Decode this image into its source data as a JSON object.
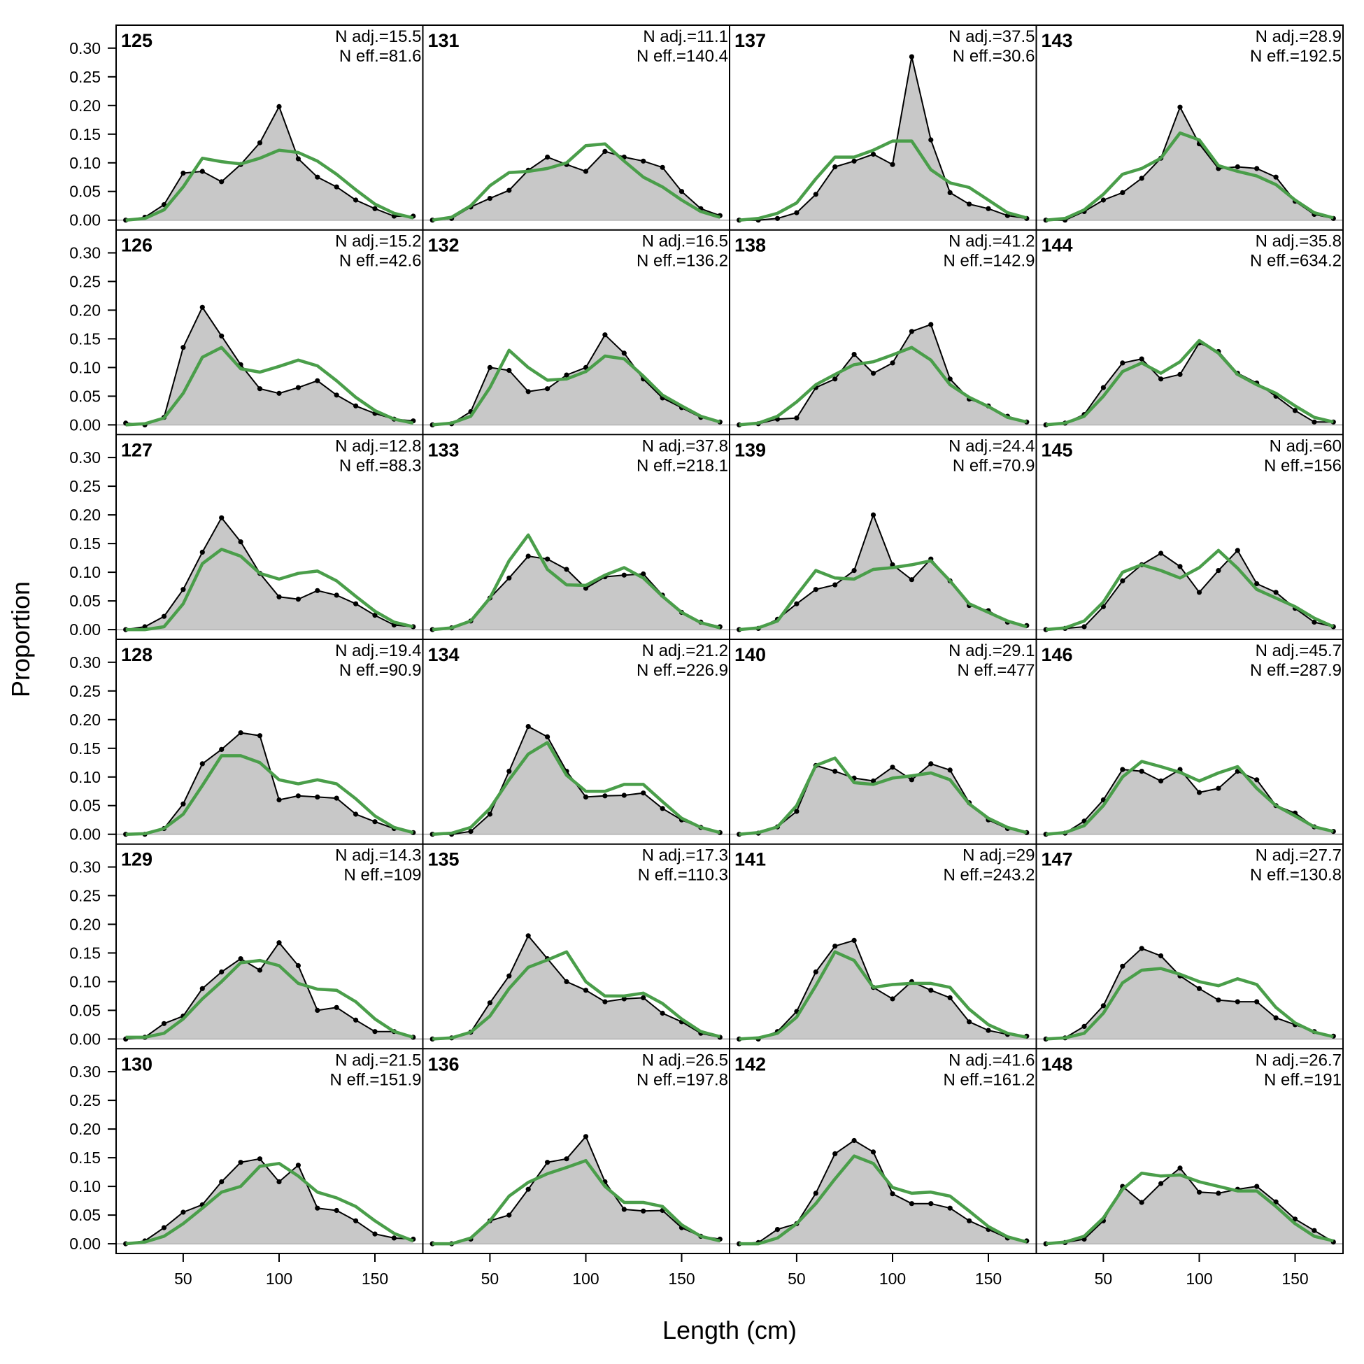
{
  "chart_data": {
    "type": "area",
    "xlabel": "Length (cm)",
    "ylabel": "Proportion",
    "xlim": [
      15,
      175
    ],
    "ylim": [
      -0.017,
      0.34
    ],
    "x_ticks": [
      50,
      100,
      150
    ],
    "y_ticks": [
      0.0,
      0.05,
      0.1,
      0.15,
      0.2,
      0.25,
      0.3
    ],
    "y_tick_labels": [
      "0.00",
      "0.05",
      "0.10",
      "0.15",
      "0.20",
      "0.25",
      "0.30"
    ],
    "x_tick_labels": [
      "50",
      "100",
      "150"
    ],
    "grid": false,
    "colors": {
      "observed_fill": "#c8c8c8",
      "observed_line": "#000000",
      "expected_line": "#4a9e4a",
      "zero_line": "#bbbbbb"
    },
    "x": [
      20,
      30,
      40,
      50,
      60,
      70,
      80,
      90,
      100,
      110,
      120,
      130,
      140,
      150,
      160,
      170
    ],
    "panel_layout": {
      "rows": 6,
      "cols": 4,
      "order": "column-major"
    },
    "panels": [
      {
        "id": "125",
        "n_adj": "N adj.=15.5",
        "n_eff": "N eff.=81.6",
        "observed": [
          0.0,
          0.005,
          0.027,
          0.082,
          0.085,
          0.067,
          0.097,
          0.135,
          0.198,
          0.107,
          0.075,
          0.058,
          0.035,
          0.02,
          0.007,
          0.007
        ],
        "expected": [
          0.0,
          0.003,
          0.018,
          0.058,
          0.108,
          0.102,
          0.098,
          0.108,
          0.122,
          0.118,
          0.103,
          0.08,
          0.053,
          0.028,
          0.012,
          0.004
        ]
      },
      {
        "id": "126",
        "n_adj": "N adj.=15.2",
        "n_eff": "N eff.=42.6",
        "observed": [
          0.003,
          0.0,
          0.013,
          0.135,
          0.205,
          0.155,
          0.105,
          0.063,
          0.055,
          0.065,
          0.077,
          0.052,
          0.033,
          0.02,
          0.01,
          0.007
        ],
        "expected": [
          0.0,
          0.002,
          0.012,
          0.055,
          0.118,
          0.135,
          0.098,
          0.092,
          0.102,
          0.113,
          0.103,
          0.077,
          0.048,
          0.025,
          0.01,
          0.003
        ]
      },
      {
        "id": "127",
        "n_adj": "N adj.=12.8",
        "n_eff": "N eff.=88.3",
        "observed": [
          0.0,
          0.005,
          0.023,
          0.07,
          0.135,
          0.195,
          0.153,
          0.098,
          0.057,
          0.053,
          0.068,
          0.06,
          0.045,
          0.025,
          0.008,
          0.005
        ],
        "expected": [
          0.0,
          0.0,
          0.005,
          0.045,
          0.115,
          0.14,
          0.128,
          0.098,
          0.088,
          0.098,
          0.102,
          0.085,
          0.058,
          0.032,
          0.013,
          0.005
        ]
      },
      {
        "id": "128",
        "n_adj": "N adj.=19.4",
        "n_eff": "N eff.=90.9",
        "observed": [
          0.0,
          0.0,
          0.01,
          0.053,
          0.123,
          0.148,
          0.177,
          0.172,
          0.06,
          0.067,
          0.065,
          0.063,
          0.035,
          0.022,
          0.01,
          0.003
        ],
        "expected": [
          0.0,
          0.001,
          0.01,
          0.035,
          0.085,
          0.137,
          0.137,
          0.125,
          0.095,
          0.088,
          0.095,
          0.088,
          0.062,
          0.032,
          0.012,
          0.003
        ]
      },
      {
        "id": "129",
        "n_adj": "N adj.=14.3",
        "n_eff": "N eff.=109",
        "observed": [
          0.0,
          0.003,
          0.027,
          0.04,
          0.088,
          0.117,
          0.14,
          0.12,
          0.168,
          0.128,
          0.05,
          0.055,
          0.033,
          0.013,
          0.013,
          0.003
        ],
        "expected": [
          0.003,
          0.003,
          0.01,
          0.035,
          0.07,
          0.1,
          0.133,
          0.137,
          0.128,
          0.097,
          0.087,
          0.085,
          0.065,
          0.035,
          0.013,
          0.003
        ]
      },
      {
        "id": "130",
        "n_adj": "N adj.=21.5",
        "n_eff": "N eff.=151.9",
        "observed": [
          0.0,
          0.005,
          0.028,
          0.055,
          0.068,
          0.108,
          0.142,
          0.148,
          0.108,
          0.137,
          0.062,
          0.058,
          0.04,
          0.017,
          0.01,
          0.008
        ],
        "expected": [
          0.0,
          0.003,
          0.013,
          0.035,
          0.062,
          0.09,
          0.1,
          0.135,
          0.14,
          0.118,
          0.09,
          0.08,
          0.065,
          0.04,
          0.018,
          0.005
        ]
      },
      {
        "id": "131",
        "n_adj": "N adj.=11.1",
        "n_eff": "N eff.=140.4",
        "observed": [
          0.0,
          0.003,
          0.023,
          0.038,
          0.052,
          0.087,
          0.11,
          0.097,
          0.085,
          0.12,
          0.11,
          0.103,
          0.092,
          0.05,
          0.02,
          0.008
        ],
        "expected": [
          0.0,
          0.005,
          0.025,
          0.06,
          0.083,
          0.085,
          0.09,
          0.1,
          0.13,
          0.133,
          0.103,
          0.075,
          0.058,
          0.035,
          0.015,
          0.005
        ]
      },
      {
        "id": "132",
        "n_adj": "N adj.=16.5",
        "n_eff": "N eff.=136.2",
        "observed": [
          0.0,
          0.002,
          0.023,
          0.1,
          0.095,
          0.058,
          0.063,
          0.087,
          0.1,
          0.157,
          0.125,
          0.08,
          0.047,
          0.03,
          0.013,
          0.005
        ],
        "expected": [
          0.0,
          0.003,
          0.015,
          0.065,
          0.13,
          0.1,
          0.078,
          0.08,
          0.093,
          0.12,
          0.115,
          0.085,
          0.052,
          0.033,
          0.015,
          0.005
        ]
      },
      {
        "id": "133",
        "n_adj": "N adj.=37.8",
        "n_eff": "N eff.=218.1",
        "observed": [
          0.0,
          0.003,
          0.015,
          0.055,
          0.09,
          0.128,
          0.123,
          0.105,
          0.072,
          0.092,
          0.095,
          0.097,
          0.06,
          0.03,
          0.013,
          0.005
        ],
        "expected": [
          0.0,
          0.003,
          0.015,
          0.055,
          0.12,
          0.165,
          0.105,
          0.078,
          0.077,
          0.095,
          0.108,
          0.09,
          0.058,
          0.03,
          0.012,
          0.003
        ]
      },
      {
        "id": "134",
        "n_adj": "N adj.=21.2",
        "n_eff": "N eff.=226.9",
        "observed": [
          0.0,
          0.0,
          0.005,
          0.035,
          0.11,
          0.188,
          0.17,
          0.11,
          0.065,
          0.067,
          0.068,
          0.072,
          0.045,
          0.025,
          0.012,
          0.003
        ],
        "expected": [
          0.0,
          0.002,
          0.012,
          0.045,
          0.095,
          0.14,
          0.16,
          0.103,
          0.075,
          0.075,
          0.087,
          0.087,
          0.057,
          0.028,
          0.012,
          0.003
        ]
      },
      {
        "id": "135",
        "n_adj": "N adj.=17.3",
        "n_eff": "N eff.=110.3",
        "observed": [
          0.0,
          0.002,
          0.012,
          0.063,
          0.11,
          0.18,
          0.14,
          0.1,
          0.085,
          0.065,
          0.07,
          0.072,
          0.045,
          0.03,
          0.01,
          0.003
        ],
        "expected": [
          0.0,
          0.002,
          0.012,
          0.04,
          0.088,
          0.125,
          0.138,
          0.152,
          0.1,
          0.075,
          0.075,
          0.08,
          0.062,
          0.035,
          0.013,
          0.004
        ]
      },
      {
        "id": "136",
        "n_adj": "N adj.=26.5",
        "n_eff": "N eff.=197.8",
        "observed": [
          0.0,
          0.0,
          0.008,
          0.04,
          0.05,
          0.095,
          0.142,
          0.148,
          0.187,
          0.108,
          0.06,
          0.057,
          0.058,
          0.028,
          0.013,
          0.008
        ],
        "expected": [
          0.0,
          0.0,
          0.01,
          0.04,
          0.083,
          0.107,
          0.122,
          0.133,
          0.145,
          0.1,
          0.072,
          0.072,
          0.065,
          0.033,
          0.013,
          0.005
        ]
      },
      {
        "id": "137",
        "n_adj": "N adj.=37.5",
        "n_eff": "N eff.=30.6",
        "observed": [
          0.0,
          0.0,
          0.003,
          0.013,
          0.045,
          0.093,
          0.103,
          0.115,
          0.097,
          0.285,
          0.14,
          0.048,
          0.028,
          0.02,
          0.008,
          0.003
        ],
        "expected": [
          0.0,
          0.003,
          0.012,
          0.03,
          0.072,
          0.11,
          0.11,
          0.122,
          0.138,
          0.138,
          0.088,
          0.065,
          0.057,
          0.035,
          0.013,
          0.004
        ]
      },
      {
        "id": "138",
        "n_adj": "N adj.=41.2",
        "n_eff": "N eff.=142.9",
        "observed": [
          0.0,
          0.002,
          0.01,
          0.012,
          0.065,
          0.08,
          0.123,
          0.09,
          0.108,
          0.163,
          0.175,
          0.08,
          0.045,
          0.033,
          0.015,
          0.005
        ],
        "expected": [
          0.0,
          0.003,
          0.015,
          0.04,
          0.07,
          0.088,
          0.105,
          0.11,
          0.122,
          0.135,
          0.113,
          0.07,
          0.048,
          0.032,
          0.013,
          0.005
        ]
      },
      {
        "id": "139",
        "n_adj": "N adj.=24.4",
        "n_eff": "N eff.=70.9",
        "observed": [
          0.0,
          0.002,
          0.018,
          0.045,
          0.07,
          0.078,
          0.103,
          0.2,
          0.113,
          0.087,
          0.123,
          0.085,
          0.042,
          0.033,
          0.013,
          0.007
        ],
        "expected": [
          0.0,
          0.003,
          0.015,
          0.06,
          0.103,
          0.09,
          0.088,
          0.105,
          0.108,
          0.113,
          0.12,
          0.085,
          0.045,
          0.03,
          0.015,
          0.005
        ]
      },
      {
        "id": "140",
        "n_adj": "N adj.=29.1",
        "n_eff": "N eff.=477",
        "observed": [
          0.0,
          0.002,
          0.013,
          0.04,
          0.12,
          0.11,
          0.098,
          0.093,
          0.117,
          0.095,
          0.123,
          0.112,
          0.055,
          0.025,
          0.01,
          0.003
        ],
        "expected": [
          0.0,
          0.003,
          0.013,
          0.05,
          0.12,
          0.133,
          0.09,
          0.087,
          0.098,
          0.102,
          0.107,
          0.095,
          0.053,
          0.028,
          0.012,
          0.003
        ]
      },
      {
        "id": "141",
        "n_adj": "N adj.=29",
        "n_eff": "N eff.=243.2",
        "observed": [
          0.0,
          0.0,
          0.013,
          0.048,
          0.117,
          0.162,
          0.172,
          0.09,
          0.07,
          0.1,
          0.085,
          0.072,
          0.03,
          0.015,
          0.008,
          0.005
        ],
        "expected": [
          0.0,
          0.002,
          0.01,
          0.038,
          0.093,
          0.152,
          0.137,
          0.09,
          0.095,
          0.097,
          0.097,
          0.09,
          0.052,
          0.025,
          0.01,
          0.003
        ]
      },
      {
        "id": "142",
        "n_adj": "N adj.=41.6",
        "n_eff": "N eff.=161.2",
        "observed": [
          0.0,
          0.002,
          0.025,
          0.035,
          0.088,
          0.157,
          0.18,
          0.16,
          0.087,
          0.07,
          0.07,
          0.062,
          0.04,
          0.025,
          0.01,
          0.005
        ],
        "expected": [
          0.0,
          0.0,
          0.01,
          0.035,
          0.07,
          0.113,
          0.153,
          0.14,
          0.098,
          0.088,
          0.09,
          0.083,
          0.057,
          0.03,
          0.012,
          0.003
        ]
      },
      {
        "id": "143",
        "n_adj": "N adj.=28.9",
        "n_eff": "N eff.=192.5",
        "observed": [
          0.0,
          0.0,
          0.015,
          0.035,
          0.048,
          0.073,
          0.108,
          0.197,
          0.133,
          0.09,
          0.093,
          0.09,
          0.075,
          0.033,
          0.01,
          0.003
        ],
        "expected": [
          0.0,
          0.003,
          0.018,
          0.045,
          0.08,
          0.09,
          0.108,
          0.152,
          0.14,
          0.095,
          0.085,
          0.077,
          0.062,
          0.035,
          0.013,
          0.004
        ]
      },
      {
        "id": "144",
        "n_adj": "N adj.=35.8",
        "n_eff": "N eff.=634.2",
        "observed": [
          0.0,
          0.003,
          0.018,
          0.065,
          0.108,
          0.115,
          0.08,
          0.088,
          0.143,
          0.128,
          0.09,
          0.073,
          0.05,
          0.025,
          0.005,
          0.005
        ],
        "expected": [
          0.0,
          0.003,
          0.015,
          0.05,
          0.093,
          0.108,
          0.09,
          0.11,
          0.147,
          0.125,
          0.088,
          0.07,
          0.055,
          0.033,
          0.013,
          0.005
        ]
      },
      {
        "id": "145",
        "n_adj": "N adj.=60",
        "n_eff": "N eff.=156",
        "observed": [
          0.0,
          0.002,
          0.005,
          0.04,
          0.085,
          0.113,
          0.133,
          0.11,
          0.065,
          0.103,
          0.138,
          0.08,
          0.065,
          0.037,
          0.013,
          0.005
        ],
        "expected": [
          0.0,
          0.003,
          0.015,
          0.048,
          0.1,
          0.113,
          0.103,
          0.09,
          0.108,
          0.138,
          0.107,
          0.07,
          0.055,
          0.04,
          0.02,
          0.005
        ]
      },
      {
        "id": "146",
        "n_adj": "N adj.=45.7",
        "n_eff": "N eff.=287.9",
        "observed": [
          0.0,
          0.002,
          0.023,
          0.06,
          0.113,
          0.11,
          0.093,
          0.113,
          0.073,
          0.08,
          0.11,
          0.095,
          0.05,
          0.037,
          0.013,
          0.005
        ],
        "expected": [
          0.0,
          0.003,
          0.015,
          0.05,
          0.1,
          0.127,
          0.118,
          0.108,
          0.093,
          0.107,
          0.118,
          0.08,
          0.05,
          0.032,
          0.013,
          0.005
        ]
      },
      {
        "id": "147",
        "n_adj": "N adj.=27.7",
        "n_eff": "N eff.=130.8",
        "observed": [
          0.0,
          0.002,
          0.022,
          0.058,
          0.127,
          0.158,
          0.145,
          0.11,
          0.088,
          0.068,
          0.065,
          0.065,
          0.037,
          0.025,
          0.013,
          0.005
        ],
        "expected": [
          0.0,
          0.002,
          0.01,
          0.045,
          0.098,
          0.12,
          0.123,
          0.113,
          0.1,
          0.093,
          0.105,
          0.095,
          0.055,
          0.028,
          0.012,
          0.004
        ]
      },
      {
        "id": "148",
        "n_adj": "N adj.=26.7",
        "n_eff": "N eff.=191",
        "observed": [
          0.0,
          0.002,
          0.008,
          0.04,
          0.1,
          0.072,
          0.105,
          0.132,
          0.09,
          0.088,
          0.095,
          0.1,
          0.073,
          0.043,
          0.023,
          0.003
        ],
        "expected": [
          0.0,
          0.003,
          0.013,
          0.045,
          0.095,
          0.123,
          0.118,
          0.12,
          0.108,
          0.1,
          0.092,
          0.092,
          0.065,
          0.035,
          0.013,
          0.005
        ]
      }
    ]
  }
}
